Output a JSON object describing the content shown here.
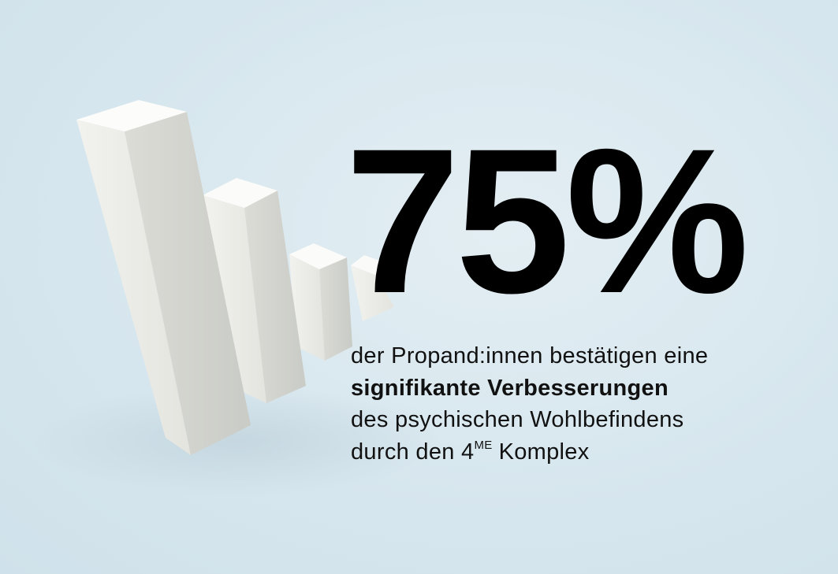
{
  "statement": {
    "headline": "75%",
    "lines": [
      "der Propand:innen bestätigen eine",
      "signifikante Verbesserungen",
      "des psychischen Wohlbefindens",
      {
        "text": "durch den 4",
        "superscript": "ME",
        "after": "Komplex"
      }
    ]
  }
}
